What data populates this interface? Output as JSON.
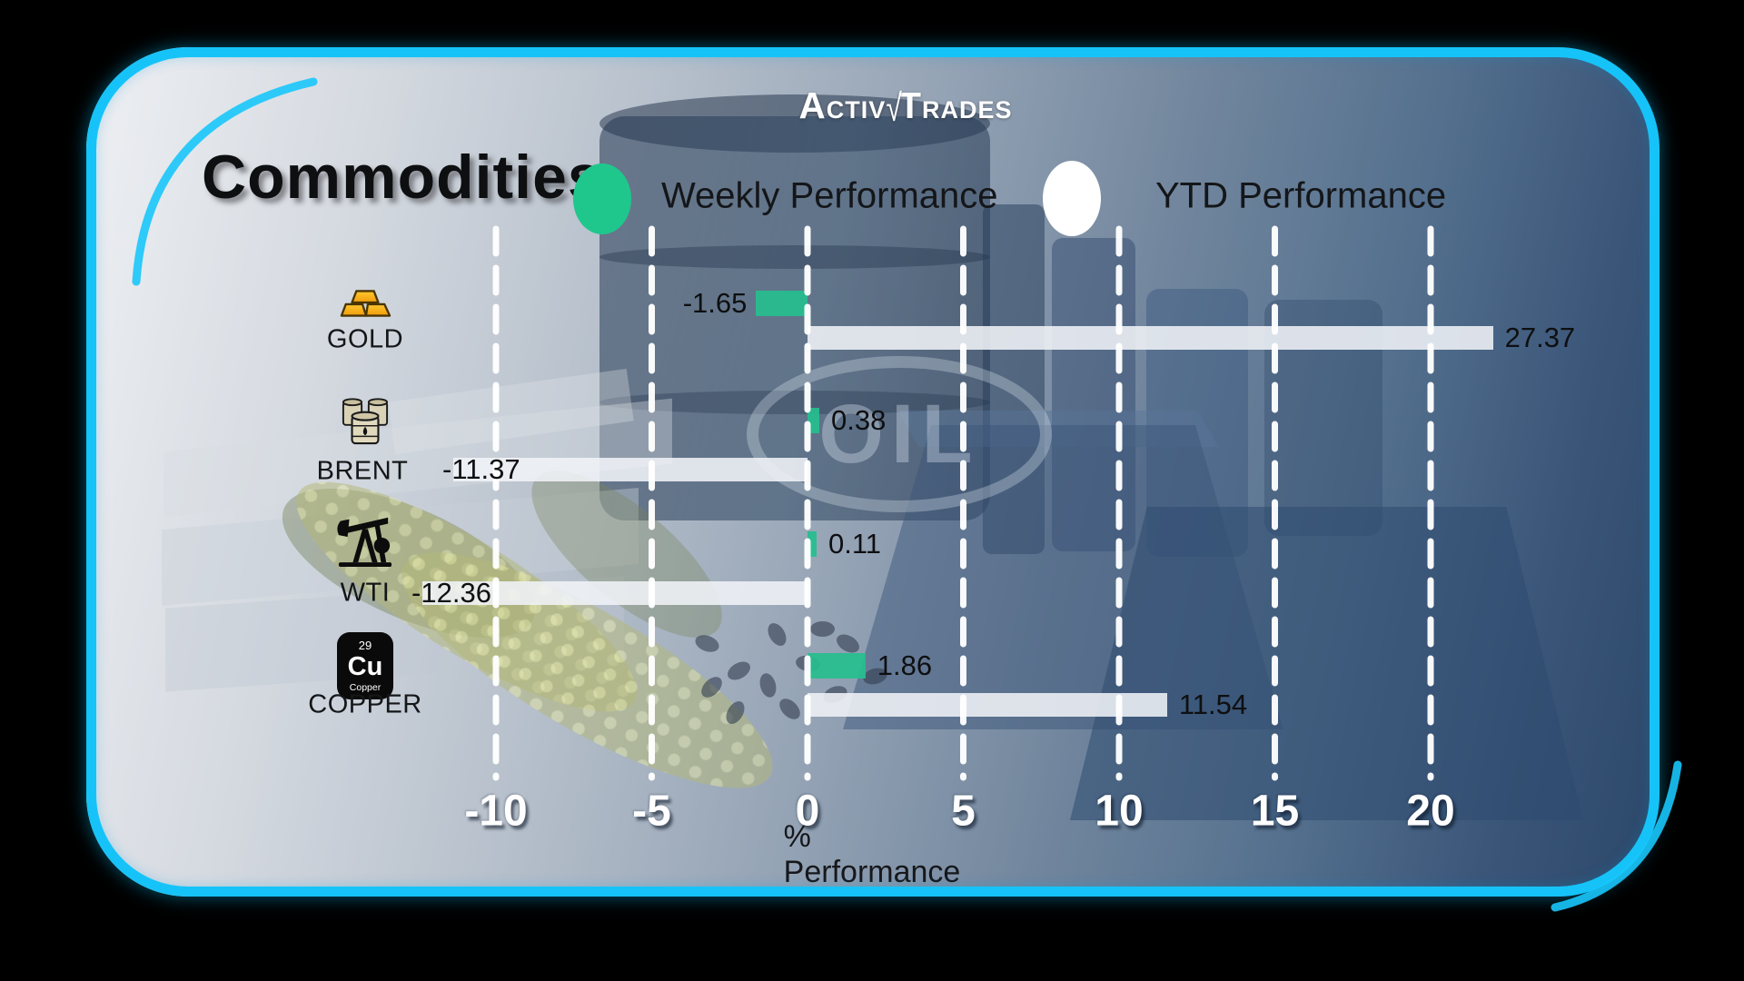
{
  "logo": {
    "word1": "ACTIV",
    "check": "√",
    "word2": "TRADES"
  },
  "header": {
    "title": "Commodities"
  },
  "legend": {
    "items": [
      {
        "label": "Weekly Performance",
        "color": "#1fc78d"
      },
      {
        "label": "YTD Performance",
        "color": "#ffffff"
      }
    ]
  },
  "background": {
    "oil_text": "OIL"
  },
  "chart_data": {
    "type": "bar",
    "orientation": "horizontal",
    "title": "Commodities",
    "xlabel": "% Performance",
    "x_ticks": [
      -10,
      -5,
      0,
      5,
      10,
      15,
      20
    ],
    "xlim": [
      -12.5,
      22.5
    ],
    "grid": "dashed-vertical-white",
    "legend_position": "top",
    "bar_display_clamp_max": 22,
    "series": [
      {
        "name": "Weekly Performance",
        "color": "#26be8e"
      },
      {
        "name": "YTD Performance",
        "color": "#f0f3f7"
      }
    ],
    "categories": [
      "GOLD",
      "BRENT",
      "WTI",
      "COPPER"
    ],
    "rows": [
      {
        "id": "gold",
        "label": "GOLD",
        "icon": "gold-bars-icon",
        "weekly": -1.65,
        "ytd": 27.37
      },
      {
        "id": "brent",
        "label": "BRENT",
        "icon": "oil-barrels-icon",
        "weekly": 0.38,
        "ytd": -11.37
      },
      {
        "id": "wti",
        "label": "WTI",
        "icon": "pumpjack-icon",
        "weekly": 0.11,
        "ytd": -12.36
      },
      {
        "id": "copper",
        "label": "COPPER",
        "icon": "copper-element-icon",
        "weekly": 1.86,
        "ytd": 11.54,
        "tile": {
          "number": "29",
          "symbol": "Cu",
          "name": "Copper"
        }
      }
    ]
  }
}
